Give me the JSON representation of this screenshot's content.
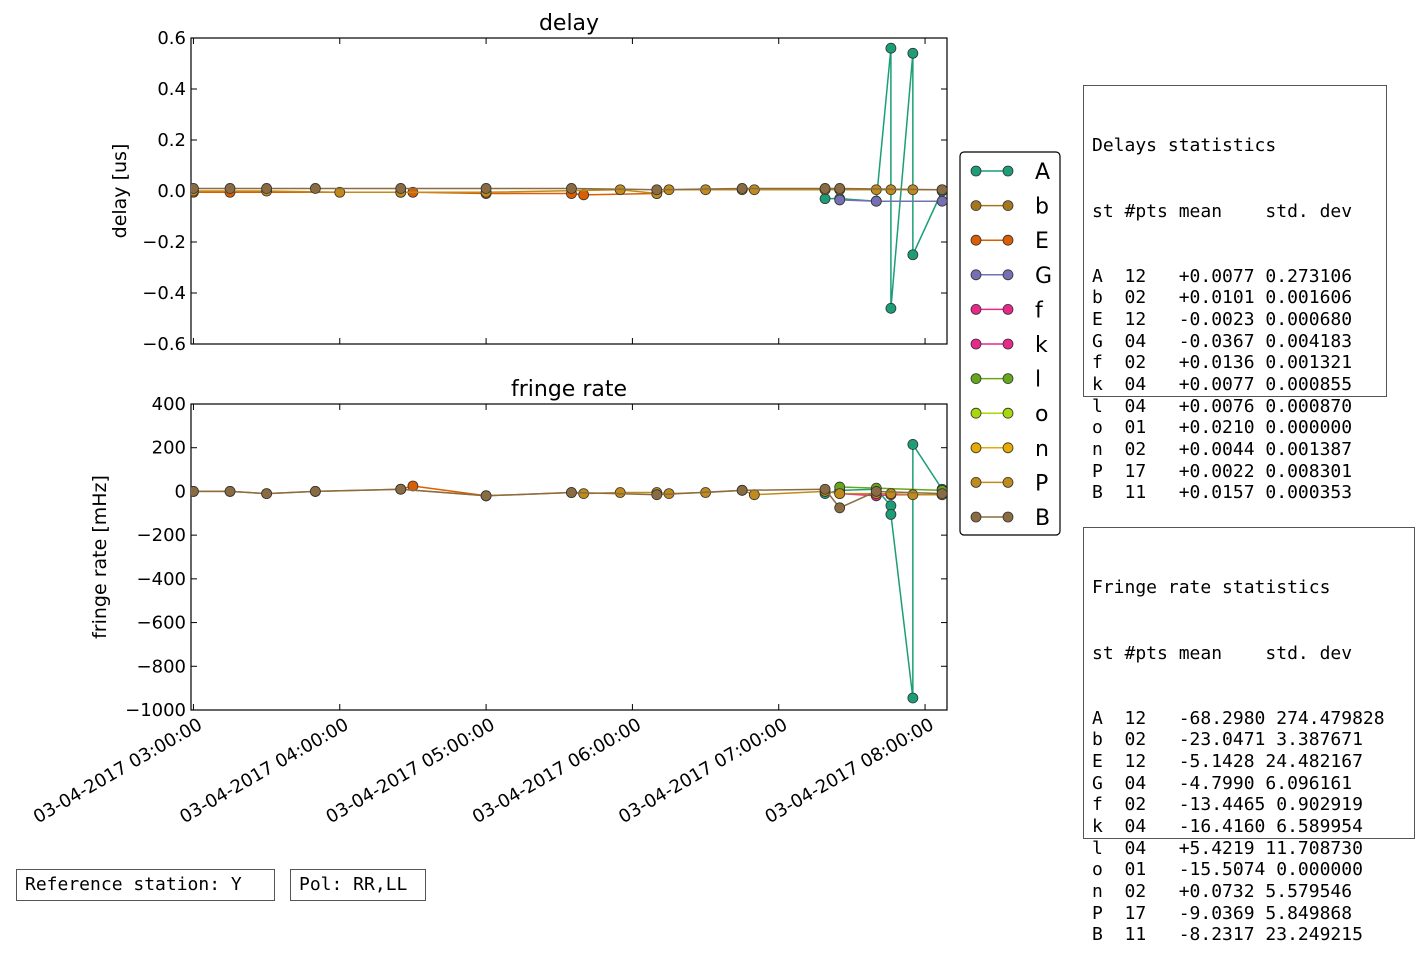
{
  "chart_data": [
    {
      "type": "line",
      "title": "delay",
      "ylabel": "delay [us]",
      "ylim": [
        -0.6,
        0.6
      ],
      "yticks": [
        0.6,
        0.4,
        0.2,
        0.0,
        -0.2,
        -0.4,
        -0.6
      ],
      "ytick_labels": [
        "0.6",
        "0.4",
        "0.2",
        "0.0",
        "−0.2",
        "−0.4",
        "−0.6"
      ],
      "series": [
        {
          "name": "A",
          "color": "#1b9e77",
          "x": [
            "07:19",
            "07:25",
            "07:40",
            "07:46",
            "07:46",
            "07:55",
            "07:55",
            "08:07"
          ],
          "y": [
            -0.03,
            -0.03,
            -0.04,
            0.56,
            -0.46,
            0.54,
            -0.25,
            0.0
          ]
        },
        {
          "name": "G",
          "color": "#7570b3",
          "x": [
            "07:25",
            "07:40",
            "08:07"
          ],
          "y": [
            -0.035,
            -0.04,
            -0.04
          ]
        },
        {
          "name": "E",
          "color": "#d95f02",
          "x": [
            "03:00",
            "03:15",
            "04:25",
            "04:30",
            "05:00",
            "05:35",
            "05:40",
            "06:10"
          ],
          "y": [
            -0.005,
            -0.005,
            -0.005,
            -0.005,
            -0.01,
            -0.01,
            -0.015,
            -0.01
          ]
        },
        {
          "name": "P",
          "color": "#c18b1b",
          "x": [
            "03:00",
            "03:30",
            "04:00",
            "04:25",
            "05:00",
            "05:55",
            "06:10",
            "06:15",
            "06:30",
            "06:45",
            "06:50",
            "07:19",
            "07:25",
            "07:40",
            "07:46",
            "07:55",
            "08:07"
          ],
          "y": [
            0.0,
            0.0,
            -0.005,
            -0.005,
            -0.005,
            0.005,
            -0.01,
            0.005,
            0.005,
            0.005,
            0.005,
            0.005,
            0.005,
            0.005,
            0.005,
            0.005,
            0.005
          ]
        },
        {
          "name": "B",
          "color": "#8b6c42",
          "x": [
            "03:00",
            "03:15",
            "03:30",
            "03:50",
            "04:25",
            "05:00",
            "05:35",
            "06:10",
            "06:45",
            "07:19",
            "07:25",
            "08:07"
          ],
          "y": [
            0.01,
            0.01,
            0.01,
            0.01,
            0.01,
            0.01,
            0.01,
            0.005,
            0.01,
            0.01,
            0.01,
            0.005
          ]
        }
      ]
    },
    {
      "type": "line",
      "title": "fringe rate",
      "ylabel": "fringe rate [mHz]",
      "ylim": [
        -1000,
        400
      ],
      "yticks": [
        400,
        200,
        0,
        -200,
        -400,
        -600,
        -800,
        -1000
      ],
      "ytick_labels": [
        "400",
        "200",
        "0",
        "−200",
        "−400",
        "−600",
        "−800",
        "−1000"
      ],
      "xtick_labels": [
        "03-04-2017 03:00:00",
        "03-04-2017 04:00:00",
        "03-04-2017 05:00:00",
        "03-04-2017 06:00:00",
        "03-04-2017 07:00:00",
        "03-04-2017 08:00:00"
      ],
      "series": [
        {
          "name": "A",
          "color": "#1b9e77",
          "x": [
            "07:19",
            "07:25",
            "07:40",
            "07:46",
            "07:46",
            "07:55",
            "07:55",
            "08:07"
          ],
          "y": [
            -10,
            5,
            10,
            -65,
            -105,
            -945,
            215,
            10
          ]
        },
        {
          "name": "E",
          "color": "#d95f02",
          "x": [
            "04:25",
            "04:30",
            "05:00"
          ],
          "y": [
            10,
            25,
            -20
          ]
        },
        {
          "name": "k",
          "color": "#e7298a",
          "x": [
            "07:25",
            "07:40",
            "07:46",
            "08:07"
          ],
          "y": [
            -10,
            -20,
            -15,
            -15
          ]
        },
        {
          "name": "l",
          "color": "#66a61e",
          "x": [
            "07:25",
            "07:40",
            "08:07"
          ],
          "y": [
            20,
            15,
            5
          ]
        },
        {
          "name": "P",
          "color": "#c18b1b",
          "x": [
            "03:00",
            "03:15",
            "03:30",
            "03:50",
            "04:25",
            "05:00",
            "05:35",
            "05:40",
            "05:55",
            "06:10",
            "06:15",
            "06:30",
            "06:45",
            "06:50",
            "07:19",
            "07:25",
            "07:40",
            "07:46",
            "07:55",
            "08:07"
          ],
          "y": [
            0,
            0,
            -10,
            0,
            10,
            -20,
            -5,
            -10,
            -5,
            -5,
            -10,
            -5,
            5,
            -15,
            0,
            -10,
            -10,
            -10,
            -15,
            -15
          ]
        },
        {
          "name": "B",
          "color": "#8b6c42",
          "x": [
            "03:00",
            "03:15",
            "03:30",
            "03:50",
            "04:25",
            "05:00",
            "05:35",
            "06:10",
            "06:45",
            "07:19",
            "07:25",
            "07:40",
            "08:07"
          ],
          "y": [
            0,
            0,
            -10,
            0,
            10,
            -20,
            -5,
            -15,
            5,
            10,
            -75,
            0,
            -10
          ]
        }
      ]
    }
  ],
  "x_range": [
    "02:59",
    "08:09"
  ],
  "legend": {
    "placement": "right",
    "entries": [
      {
        "label": "A",
        "color": "#1b9e77"
      },
      {
        "label": "b",
        "color": "#a6761d"
      },
      {
        "label": "E",
        "color": "#d95f02"
      },
      {
        "label": "G",
        "color": "#7570b3"
      },
      {
        "label": "f",
        "color": "#e7298a"
      },
      {
        "label": "k",
        "color": "#e7298a"
      },
      {
        "label": "l",
        "color": "#66a61e"
      },
      {
        "label": "o",
        "color": "#a6d80a"
      },
      {
        "label": "n",
        "color": "#e6ab02"
      },
      {
        "label": "P",
        "color": "#c18b1b"
      },
      {
        "label": "B",
        "color": "#8b6c42"
      }
    ]
  },
  "delay_stats": {
    "title": "Delays statistics",
    "header": "st #pts mean    std. dev",
    "rows": [
      "A  12   +0.0077 0.273106",
      "b  02   +0.0101 0.001606",
      "E  12   -0.0023 0.000680",
      "G  04   -0.0367 0.004183",
      "f  02   +0.0136 0.001321",
      "k  04   +0.0077 0.000855",
      "l  04   +0.0076 0.000870",
      "o  01   +0.0210 0.000000",
      "n  02   +0.0044 0.001387",
      "P  17   +0.0022 0.008301",
      "B  11   +0.0157 0.000353"
    ]
  },
  "rate_stats": {
    "title": "Fringe rate statistics",
    "header": "st #pts mean    std. dev",
    "rows": [
      "A  12   -68.2980 274.479828",
      "b  02   -23.0471 3.387671",
      "E  12   -5.1428 24.482167",
      "G  04   -4.7990 6.096161",
      "f  02   -13.4465 0.902919",
      "k  04   -16.4160 6.589954",
      "l  04   +5.4219 11.708730",
      "o  01   -15.5074 0.000000",
      "n  02   +0.0732 5.579546",
      "P  17   -9.0369 5.849868",
      "B  11   -8.2317 23.249215"
    ]
  },
  "footer": {
    "reference": "Reference station: Y",
    "pol": "Pol: RR,LL"
  }
}
